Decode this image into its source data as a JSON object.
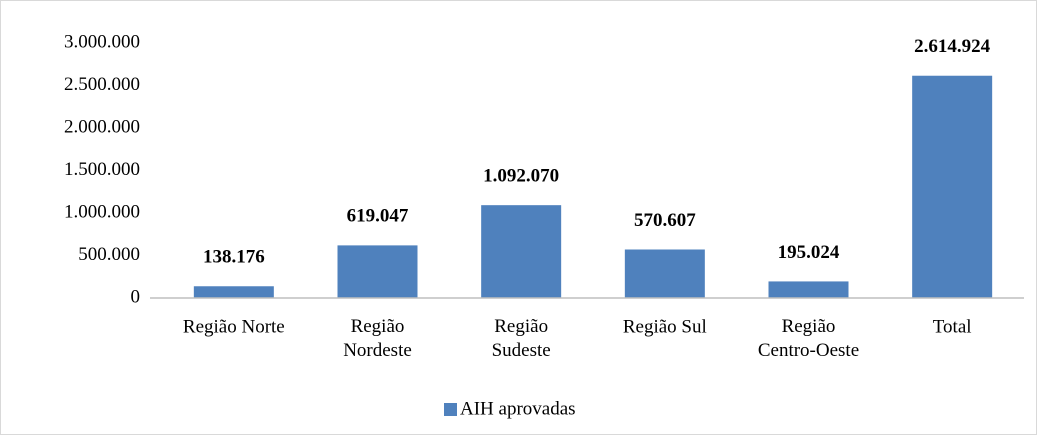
{
  "chart_data": {
    "type": "bar",
    "categories": [
      "Região Norte",
      "Região Nordeste",
      "Região Sudeste",
      "Região Sul",
      "Região Centro-Oeste",
      "Total"
    ],
    "series": [
      {
        "name": "AIH aprovadas",
        "color": "#4f81bd",
        "values": [
          138176,
          619047,
          1092070,
          570607,
          195024,
          2614924
        ],
        "value_labels": [
          "138.176",
          "619.047",
          "1.092.070",
          "570.607",
          "195.024",
          "2.614.924"
        ]
      }
    ],
    "ylim": [
      0,
      3000000
    ],
    "yticks": [
      0,
      {
        "value": 500000,
        "label": "500.000"
      },
      {
        "value": 1000000,
        "label": "1.000.000"
      },
      {
        "value": 1500000,
        "label": "1.500.000"
      },
      {
        "value": 2000000,
        "label": "2.000.000"
      },
      {
        "value": 2500000,
        "label": "2.500.000"
      },
      {
        "value": 3000000,
        "label": "3.000.000"
      }
    ],
    "legend": "bottom"
  }
}
